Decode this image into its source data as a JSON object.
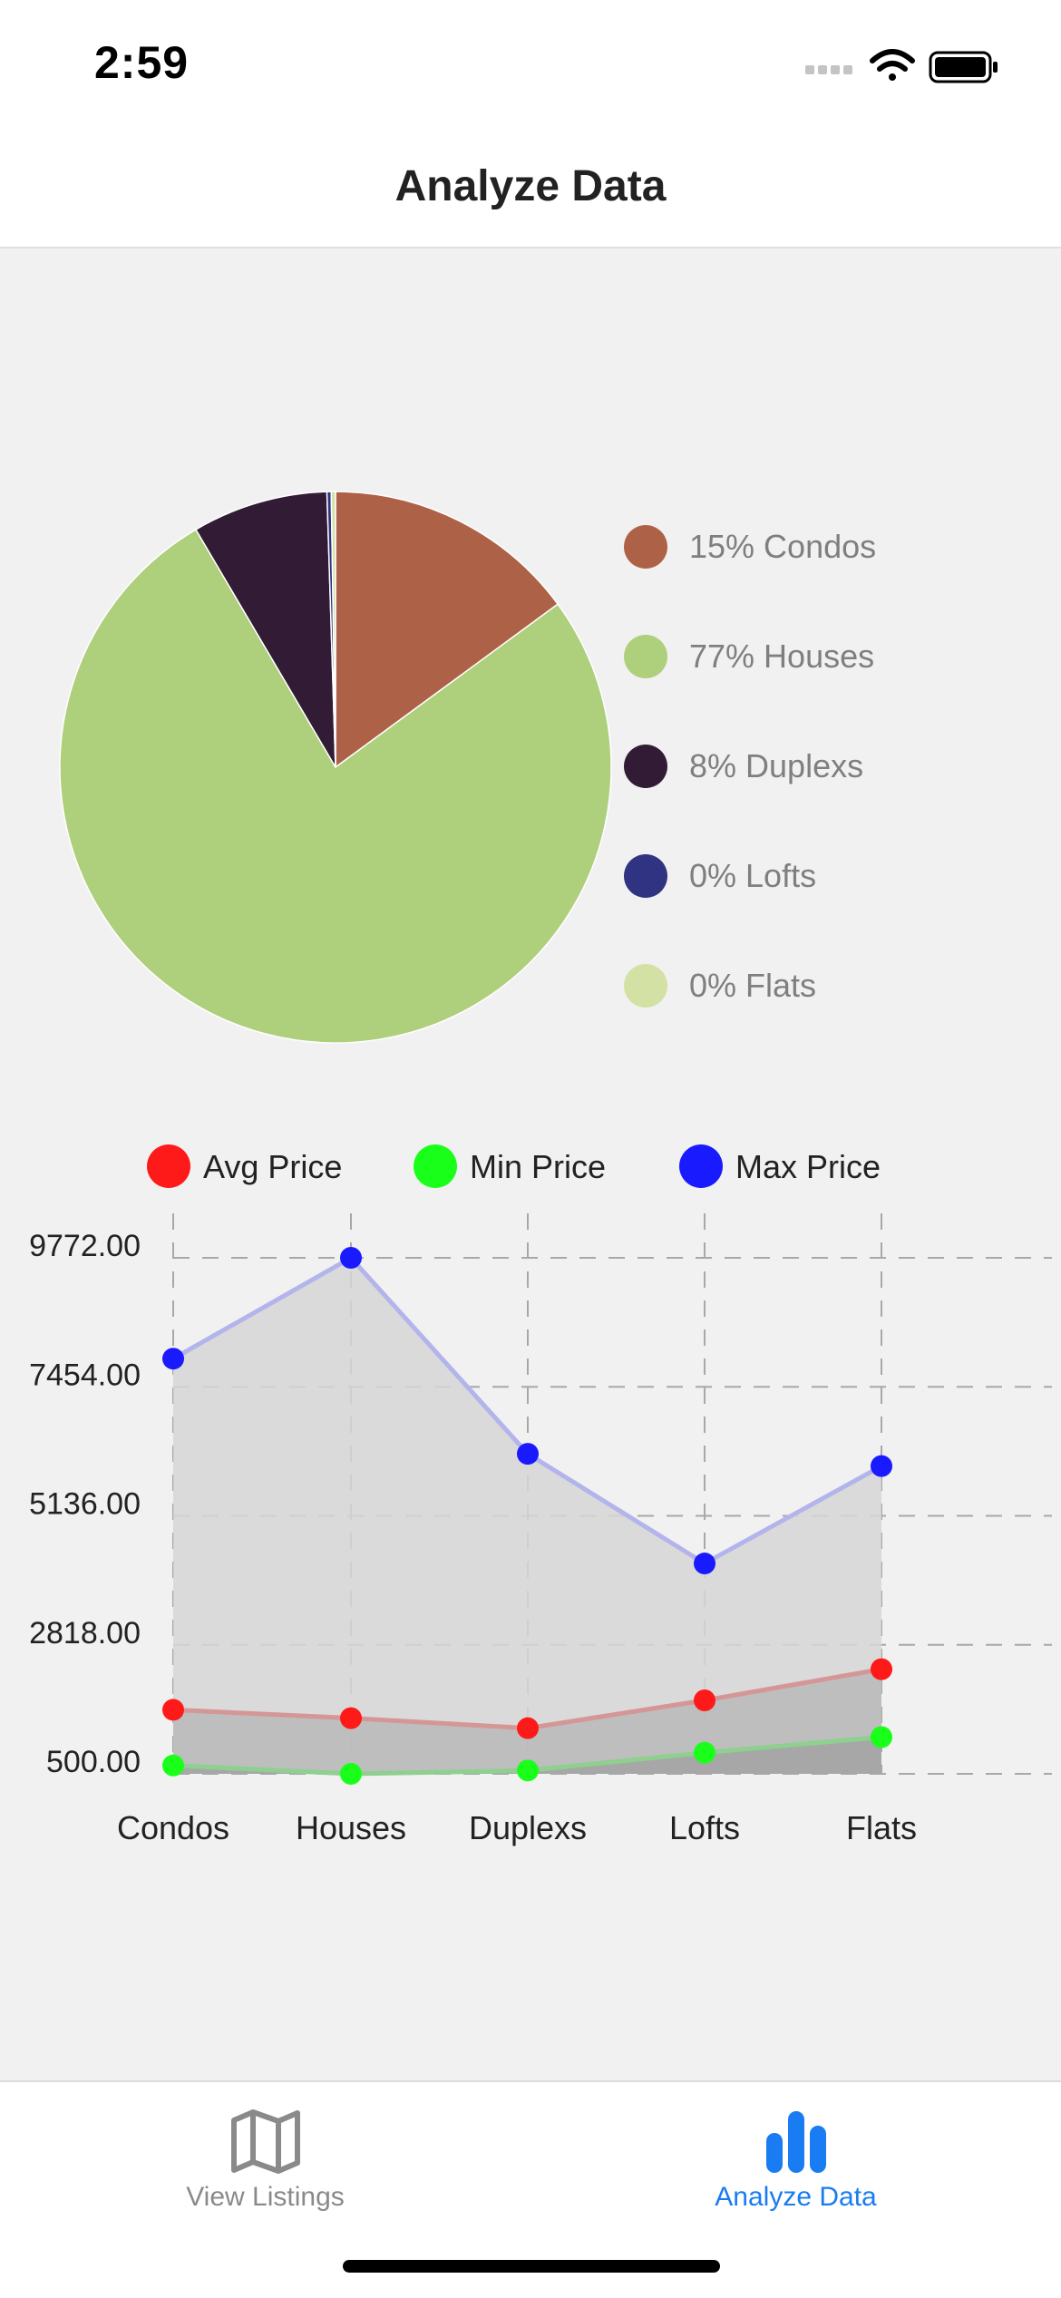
{
  "status_bar": {
    "time": "2:59"
  },
  "nav": {
    "title": "Analyze Data"
  },
  "tabs": [
    {
      "label": "View Listings",
      "icon": "map-icon",
      "active": false
    },
    {
      "label": "Analyze Data",
      "icon": "bar-chart-icon",
      "active": true
    }
  ],
  "colors": {
    "active_tab": "#1a7cf2",
    "inactive_tab": "#8a8a8a",
    "avg": "#ff1a1a",
    "min": "#1aff1a",
    "max": "#1a1aff"
  },
  "chart_data": [
    {
      "type": "pie",
      "slices": [
        {
          "label": "15% Condos",
          "value": 15,
          "color": "#ad6247"
        },
        {
          "label": "77% Houses",
          "value": 77,
          "color": "#aecf7b"
        },
        {
          "label": "8% Duplexs",
          "value": 8,
          "color": "#321b35"
        },
        {
          "label": "0% Lofts",
          "value": 0.25,
          "color": "#2f3381"
        },
        {
          "label": "0% Flats",
          "value": 0.25,
          "color": "#d3e1a4"
        }
      ],
      "legend": "right"
    },
    {
      "type": "area",
      "categories": [
        "Condos",
        "Houses",
        "Duplexs",
        "Lofts",
        "Flats"
      ],
      "series": [
        {
          "name": "Avg Price",
          "color": "#ff1a1a",
          "values": [
            1650,
            1500,
            1320,
            1820,
            2380
          ]
        },
        {
          "name": "Min Price",
          "color": "#1aff1a",
          "values": [
            650,
            500,
            560,
            880,
            1160
          ]
        },
        {
          "name": "Max Price",
          "color": "#1a1aff",
          "values": [
            7960,
            9772,
            6250,
            4280,
            6030
          ]
        }
      ],
      "yticks": [
        "9772.00",
        "7454.00",
        "5136.00",
        "2818.00",
        "500.00"
      ],
      "ylim": [
        500,
        9772
      ],
      "grid": true,
      "legend": "top"
    }
  ]
}
